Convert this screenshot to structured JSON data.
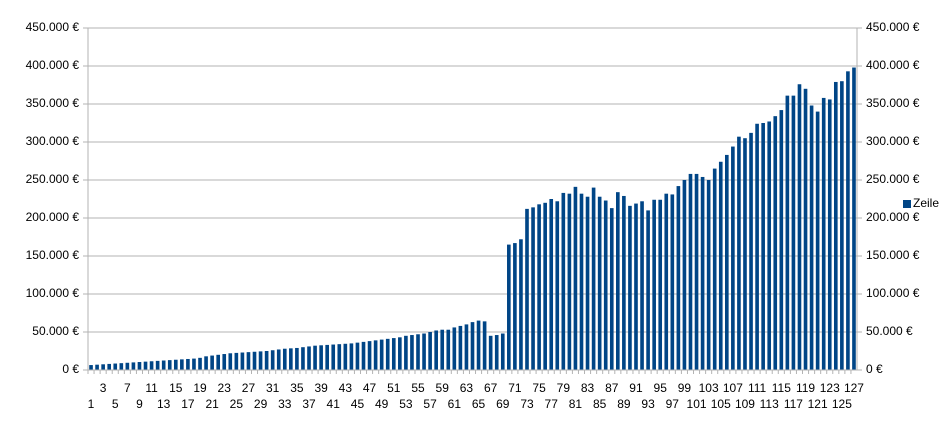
{
  "chart_data": {
    "type": "bar",
    "categories": [
      1,
      null,
      3,
      null,
      5,
      null,
      7,
      null,
      9,
      null,
      11,
      null,
      13,
      null,
      15,
      null,
      17,
      null,
      19,
      null,
      21,
      null,
      23,
      null,
      25,
      null,
      27,
      null,
      29,
      null,
      31,
      null,
      33,
      null,
      35,
      null,
      37,
      null,
      39,
      null,
      41,
      null,
      43,
      null,
      45,
      null,
      47,
      null,
      49,
      null,
      51,
      null,
      53,
      null,
      55,
      null,
      57,
      null,
      59,
      null,
      61,
      null,
      63,
      null,
      65,
      null,
      67,
      null,
      69,
      null,
      71,
      null,
      73,
      null,
      75,
      null,
      77,
      null,
      79,
      null,
      81,
      null,
      83,
      null,
      85,
      null,
      87,
      null,
      89,
      null,
      91,
      null,
      93,
      null,
      95,
      null,
      97,
      null,
      99,
      null,
      101,
      null,
      103,
      null,
      105,
      null,
      107,
      null,
      109,
      null,
      111,
      null,
      113,
      null,
      115,
      null,
      117,
      null,
      119,
      null,
      121,
      null,
      123,
      null,
      125,
      null,
      127
    ],
    "series": [
      {
        "name": "Zeile",
        "color": "#004586",
        "values": [
          6500,
          7000,
          7500,
          8000,
          8500,
          9000,
          9500,
          10000,
          10500,
          11000,
          11500,
          12000,
          12500,
          13000,
          13500,
          14000,
          14500,
          15000,
          16000,
          18000,
          19000,
          20000,
          21000,
          22000,
          22500,
          23000,
          23500,
          24000,
          24500,
          25000,
          26000,
          27000,
          28000,
          28500,
          29000,
          30000,
          31000,
          32000,
          32500,
          33000,
          33500,
          34000,
          34500,
          35000,
          36000,
          37000,
          38000,
          39000,
          40000,
          41000,
          42000,
          43000,
          45000,
          46000,
          47000,
          48000,
          50000,
          52000,
          53000,
          53000,
          56000,
          58000,
          60000,
          63000,
          65000,
          64000,
          45000,
          46000,
          48000,
          165000,
          167000,
          172000,
          212000,
          214000,
          218000,
          220000,
          225000,
          222000,
          233000,
          232000,
          241000,
          232000,
          228000,
          240000,
          228000,
          223000,
          213000,
          234000,
          229000,
          216000,
          219000,
          222000,
          210000,
          224000,
          224000,
          232000,
          231000,
          242000,
          250000,
          258000,
          258000,
          254000,
          250000,
          265000,
          274000,
          283000,
          294000,
          307000,
          305000,
          312000,
          324000,
          325000,
          327000,
          334000,
          342000,
          361000,
          361000,
          376000,
          370000,
          348000,
          340000,
          358000,
          356000,
          379000,
          380000,
          393000,
          398000
        ]
      }
    ],
    "ylim": [
      0,
      450000
    ],
    "yticks": [
      {
        "value": 0,
        "label": "0 €"
      },
      {
        "value": 50000,
        "label": "50.000 €"
      },
      {
        "value": 100000,
        "label": "100.000 €"
      },
      {
        "value": 150000,
        "label": "150.000 €"
      },
      {
        "value": 200000,
        "label": "200.000 €"
      },
      {
        "value": 250000,
        "label": "250.000 €"
      },
      {
        "value": 300000,
        "label": "300.000 €"
      },
      {
        "value": 350000,
        "label": "350.000 €"
      },
      {
        "value": 400000,
        "label": "400.000 €"
      },
      {
        "value": 450000,
        "label": "450.000 €"
      }
    ],
    "y2lim": [
      0,
      450000
    ],
    "y2ticks": [
      {
        "value": 0,
        "label": "0 €"
      },
      {
        "value": 50000,
        "label": "50.000 €"
      },
      {
        "value": 100000,
        "label": "100.000 €"
      },
      {
        "value": 150000,
        "label": "150.000 €"
      },
      {
        "value": 200000,
        "label": "200.000 €"
      },
      {
        "value": 250000,
        "label": "250.000 €"
      },
      {
        "value": 300000,
        "label": "300.000 €"
      },
      {
        "value": 350000,
        "label": "350.000 €"
      },
      {
        "value": 400000,
        "label": "400.000 €"
      },
      {
        "value": 450000,
        "label": "450.000 €"
      }
    ],
    "grid": true,
    "legend": "right"
  }
}
